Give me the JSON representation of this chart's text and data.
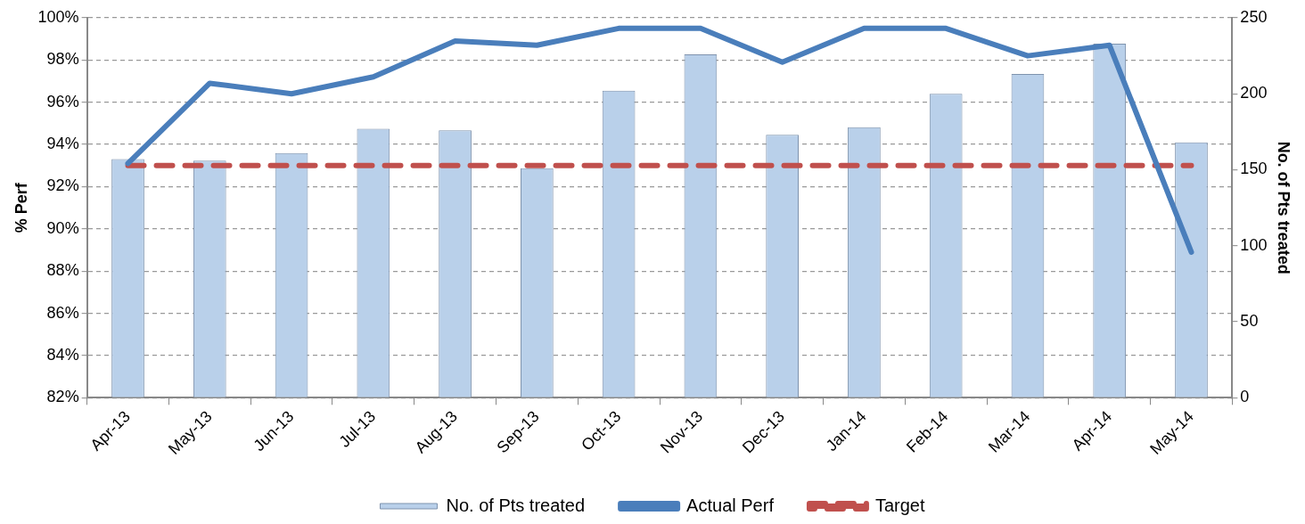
{
  "chart_data": {
    "type": "bar",
    "ylabel": "% Perf",
    "y2label": "No. of Pts treated",
    "categories": [
      "Apr-13",
      "May-13",
      "Jun-13",
      "Jul-13",
      "Aug-13",
      "Sep-13",
      "Oct-13",
      "Nov-13",
      "Dec-13",
      "Jan-14",
      "Feb-14",
      "Mar-14",
      "Apr-14",
      "May-14"
    ],
    "series": [
      {
        "name": "No. of Pts treated",
        "axis": "y2",
        "color": "#b9d0ea",
        "values": [
          157,
          156,
          161,
          177,
          176,
          151,
          202,
          226,
          173,
          178,
          200,
          213,
          233,
          168
        ]
      },
      {
        "name": "Actual Perf",
        "type": "line",
        "color": "#4a7ebb",
        "line_style": "solid",
        "values": [
          93.1,
          96.9,
          96.4,
          97.2,
          98.9,
          98.7,
          99.5,
          99.5,
          97.9,
          99.5,
          99.5,
          98.2,
          98.7,
          88.9
        ]
      },
      {
        "name": "Target",
        "type": "line",
        "color": "#c0504d",
        "line_style": "dashed",
        "values": [
          93,
          93,
          93,
          93,
          93,
          93,
          93,
          93,
          93,
          93,
          93,
          93,
          93,
          93
        ]
      }
    ],
    "ylim": [
      82,
      100
    ],
    "yticks": [
      {
        "value": 82,
        "label": "82%"
      },
      {
        "value": 84,
        "label": "84%"
      },
      {
        "value": 86,
        "label": "86%"
      },
      {
        "value": 88,
        "label": "88%"
      },
      {
        "value": 90,
        "label": "90%"
      },
      {
        "value": 92,
        "label": "92%"
      },
      {
        "value": 94,
        "label": "94%"
      },
      {
        "value": 96,
        "label": "96%"
      },
      {
        "value": 98,
        "label": "98%"
      },
      {
        "value": 100,
        "label": "100%"
      }
    ],
    "y2lim": [
      0,
      250
    ],
    "y2ticks": [
      0,
      50,
      100,
      150,
      200,
      250
    ],
    "grid": "y",
    "legend": "bottom",
    "marker": "none"
  }
}
